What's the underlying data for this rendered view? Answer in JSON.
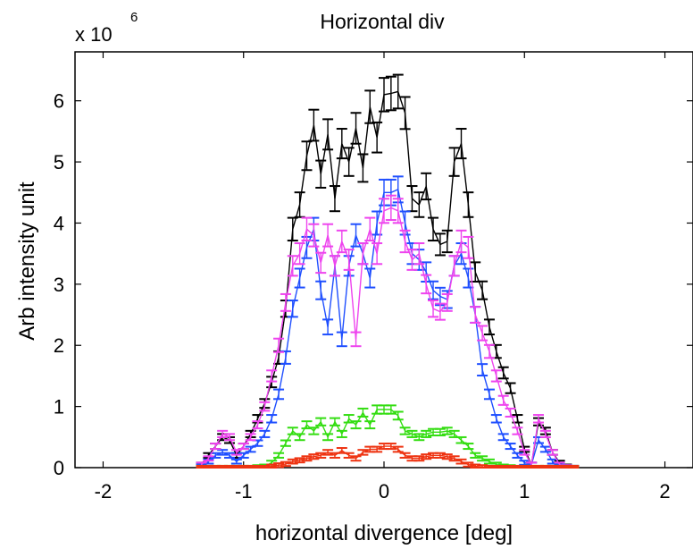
{
  "chart_data": {
    "type": "line",
    "title": "Horizontal div",
    "xlabel": "horizontal divergence [deg]",
    "ylabel": "Arb intensity unit",
    "y_multiplier_label": "x 10",
    "y_multiplier_exponent": "6",
    "xlim": [
      -2.2,
      2.2
    ],
    "ylim": [
      0,
      6.8
    ],
    "xticks": [
      -2,
      -1,
      0,
      1,
      2
    ],
    "xtick_labels": [
      "-2",
      "-1",
      "0",
      "1",
      "2"
    ],
    "yticks": [
      0,
      1,
      2,
      3,
      4,
      5,
      6
    ],
    "ytick_labels": [
      "0",
      "1",
      "2",
      "3",
      "4",
      "5",
      "6"
    ],
    "grid": false,
    "error_bars": true,
    "x": [
      -1.3,
      -1.25,
      -1.2,
      -1.15,
      -1.1,
      -1.05,
      -1.0,
      -0.95,
      -0.9,
      -0.85,
      -0.8,
      -0.75,
      -0.7,
      -0.65,
      -0.6,
      -0.55,
      -0.5,
      -0.45,
      -0.4,
      -0.35,
      -0.3,
      -0.25,
      -0.2,
      -0.15,
      -0.1,
      -0.05,
      0.0,
      0.05,
      0.1,
      0.15,
      0.2,
      0.25,
      0.3,
      0.35,
      0.4,
      0.45,
      0.5,
      0.55,
      0.6,
      0.65,
      0.7,
      0.75,
      0.8,
      0.85,
      0.9,
      0.95,
      1.0,
      1.05,
      1.1,
      1.15,
      1.2,
      1.25,
      1.3,
      1.35
    ],
    "series": [
      {
        "color": "#000000",
        "values": [
          0.05,
          0.2,
          0.35,
          0.5,
          0.45,
          0.2,
          0.35,
          0.55,
          0.8,
          1.05,
          1.4,
          1.8,
          2.6,
          3.9,
          4.3,
          5.1,
          5.6,
          4.8,
          5.45,
          4.4,
          5.3,
          5.0,
          5.55,
          4.9,
          5.9,
          5.4,
          6.1,
          6.12,
          6.15,
          5.8,
          4.4,
          4.3,
          4.6,
          3.9,
          3.65,
          3.7,
          5.0,
          5.3,
          4.3,
          3.2,
          2.9,
          2.3,
          1.9,
          1.55,
          1.3,
          0.8,
          0.3,
          0.05,
          0.75,
          0.6,
          0.25,
          0.08,
          0.02,
          0.0
        ]
      },
      {
        "color": "#1f4fff",
        "values": [
          0.02,
          0.1,
          0.2,
          0.25,
          0.2,
          0.1,
          0.2,
          0.3,
          0.4,
          0.55,
          0.8,
          1.2,
          1.8,
          2.6,
          3.1,
          3.6,
          3.9,
          2.9,
          2.3,
          3.3,
          2.1,
          3.3,
          3.8,
          3.5,
          3.1,
          4.0,
          4.5,
          4.5,
          4.55,
          4.0,
          3.5,
          3.4,
          3.2,
          2.9,
          2.8,
          2.75,
          3.3,
          3.5,
          3.1,
          2.5,
          1.6,
          1.2,
          0.8,
          0.5,
          0.35,
          0.2,
          0.08,
          0.05,
          0.45,
          0.3,
          0.1,
          0.02,
          0.01,
          0.0
        ]
      },
      {
        "color": "#ee44ee",
        "values": [
          0.05,
          0.15,
          0.35,
          0.55,
          0.5,
          0.25,
          0.35,
          0.5,
          0.7,
          1.0,
          1.5,
          2.0,
          2.7,
          3.3,
          3.5,
          3.9,
          3.8,
          3.35,
          3.8,
          3.3,
          3.7,
          3.4,
          2.1,
          3.5,
          3.9,
          3.5,
          4.2,
          4.25,
          4.2,
          3.7,
          3.4,
          3.5,
          3.0,
          2.6,
          2.55,
          2.7,
          3.3,
          3.7,
          3.6,
          2.5,
          2.2,
          1.9,
          1.5,
          1.1,
          0.9,
          0.6,
          0.25,
          0.05,
          0.8,
          0.55,
          0.25,
          0.05,
          0.01,
          0.0
        ]
      },
      {
        "color": "#33dd11",
        "values": [
          0.0,
          0.0,
          0.0,
          0.0,
          0.0,
          0.0,
          0.0,
          0.0,
          0.01,
          0.02,
          0.08,
          0.2,
          0.4,
          0.6,
          0.5,
          0.7,
          0.6,
          0.75,
          0.5,
          0.75,
          0.55,
          0.8,
          0.7,
          0.9,
          0.7,
          0.95,
          0.95,
          0.95,
          0.85,
          0.6,
          0.55,
          0.5,
          0.55,
          0.58,
          0.58,
          0.6,
          0.55,
          0.45,
          0.35,
          0.2,
          0.15,
          0.1,
          0.05,
          0.02,
          0.01,
          0.0,
          0.0,
          0.0,
          0.0,
          0.0,
          0.0,
          0.0,
          0.0,
          0.0
        ]
      },
      {
        "color": "#ee3311",
        "values": [
          0.0,
          0.0,
          0.0,
          0.0,
          0.0,
          0.0,
          0.0,
          0.0,
          0.0,
          0.0,
          0.02,
          0.04,
          0.06,
          0.1,
          0.12,
          0.15,
          0.18,
          0.2,
          0.25,
          0.2,
          0.28,
          0.2,
          0.15,
          0.25,
          0.3,
          0.3,
          0.35,
          0.35,
          0.3,
          0.2,
          0.15,
          0.15,
          0.18,
          0.2,
          0.2,
          0.18,
          0.15,
          0.1,
          0.05,
          0.02,
          0.01,
          0.0,
          0.0,
          0.0,
          0.0,
          0.0,
          0.0,
          0.0,
          0.0,
          0.0,
          0.0,
          0.0,
          0.0,
          0.0
        ]
      }
    ]
  }
}
